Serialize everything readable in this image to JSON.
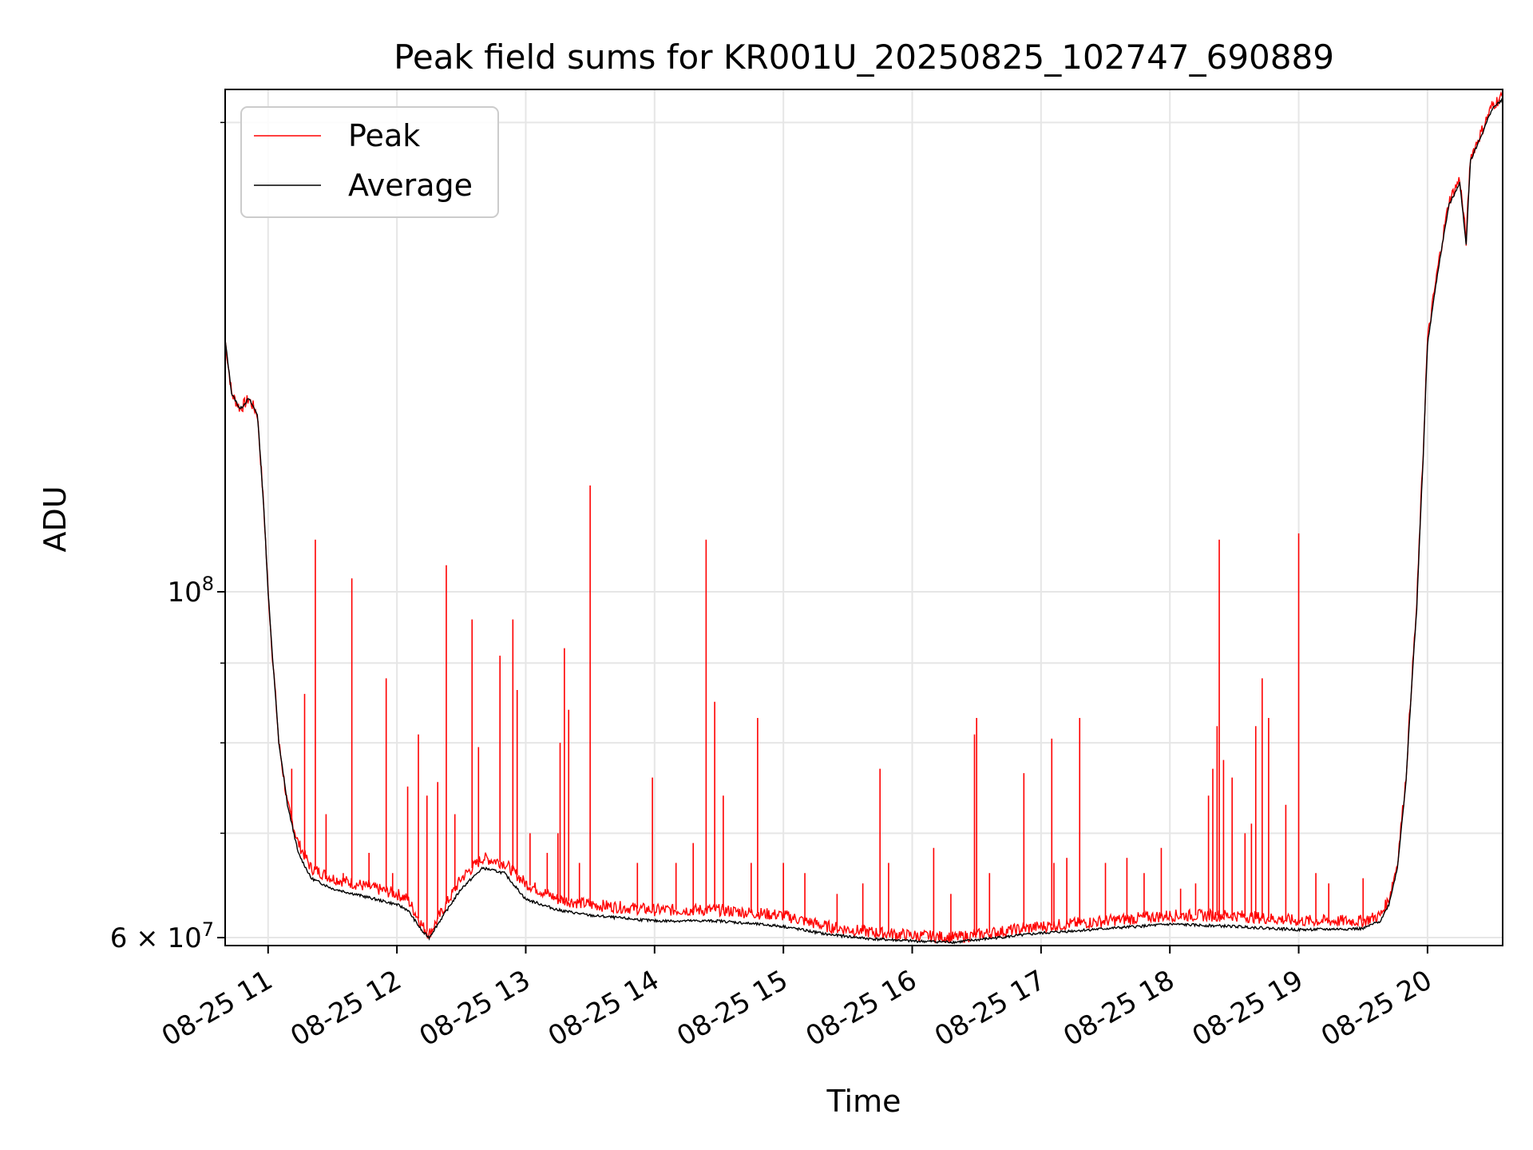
{
  "chart_data": {
    "type": "line",
    "title": "Peak field sums for KR001U_20250825_102747_690889",
    "xlabel": "Time",
    "ylabel": "ADU",
    "yscale": "log",
    "xlim": [
      "2025-08-25 10:40",
      "2025-08-25 20:35"
    ],
    "ylim": [
      59300000,
      210000000
    ],
    "grid": true,
    "legend": {
      "position": "top-left"
    },
    "x_ticks": [
      "08-25 11",
      "08-25 12",
      "08-25 13",
      "08-25 14",
      "08-25 15",
      "08-25 16",
      "08-25 17",
      "08-25 18",
      "08-25 19",
      "08-25 20"
    ],
    "y_ticks": [
      {
        "value": 100000000,
        "base": "10",
        "exp": "8"
      },
      {
        "value": 60000000,
        "text": "6 × 10",
        "exp": "7"
      }
    ],
    "colors": {
      "peak": "#ff0000",
      "average": "#000000",
      "grid": "#e6e6e6"
    },
    "series": [
      {
        "name": "Peak",
        "color": "#ff0000",
        "points": [
          [
            "10:40",
            145000000
          ],
          [
            "10:43",
            134000000
          ],
          [
            "10:47",
            131000000
          ],
          [
            "10:51",
            133000000
          ],
          [
            "10:55",
            130000000
          ],
          [
            "10:58",
            113000000
          ],
          [
            "11:00",
            100000000
          ],
          [
            "11:02",
            91000000
          ],
          [
            "11:05",
            80000000
          ],
          [
            "11:09",
            73000000
          ],
          [
            "11:14",
            69000000
          ],
          [
            "11:20",
            66500000
          ],
          [
            "11:30",
            65500000
          ],
          [
            "11:40",
            65000000
          ],
          [
            "11:50",
            64500000
          ],
          [
            "12:00",
            64000000
          ],
          [
            "12:05",
            63500000
          ],
          [
            "12:12",
            61000000
          ],
          [
            "12:15",
            60300000
          ],
          [
            "12:20",
            62000000
          ],
          [
            "12:30",
            65500000
          ],
          [
            "12:40",
            67500000
          ],
          [
            "12:50",
            67000000
          ],
          [
            "13:00",
            65000000
          ],
          [
            "13:15",
            63500000
          ],
          [
            "13:30",
            63000000
          ],
          [
            "14:00",
            62500000
          ],
          [
            "14:30",
            62500000
          ],
          [
            "15:00",
            62000000
          ],
          [
            "15:20",
            61000000
          ],
          [
            "15:40",
            60500000
          ],
          [
            "16:00",
            60200000
          ],
          [
            "16:20",
            60000000
          ],
          [
            "16:40",
            60500000
          ],
          [
            "17:00",
            61000000
          ],
          [
            "17:30",
            61500000
          ],
          [
            "18:00",
            62000000
          ],
          [
            "18:30",
            62000000
          ],
          [
            "19:00",
            61500000
          ],
          [
            "19:30",
            61500000
          ],
          [
            "19:38",
            62000000
          ],
          [
            "19:42",
            63500000
          ],
          [
            "19:46",
            67000000
          ],
          [
            "19:50",
            76000000
          ],
          [
            "19:55",
            98000000
          ],
          [
            "19:58",
            123000000
          ],
          [
            "20:00",
            145000000
          ],
          [
            "20:05",
            162000000
          ],
          [
            "20:10",
            178000000
          ],
          [
            "20:15",
            184000000
          ],
          [
            "20:18",
            168000000
          ],
          [
            "20:20",
            190000000
          ],
          [
            "20:25",
            197000000
          ],
          [
            "20:30",
            205000000
          ],
          [
            "20:35",
            208000000
          ]
        ],
        "spikes": [
          [
            "11:11",
            77000000
          ],
          [
            "11:17",
            86000000
          ],
          [
            "11:22",
            108000000
          ],
          [
            "11:27",
            72000000
          ],
          [
            "11:35",
            66000000
          ],
          [
            "11:39",
            102000000
          ],
          [
            "11:47",
            68000000
          ],
          [
            "11:55",
            88000000
          ],
          [
            "11:58",
            66000000
          ],
          [
            "12:05",
            75000000
          ],
          [
            "12:10",
            81000000
          ],
          [
            "12:14",
            74000000
          ],
          [
            "12:19",
            75500000
          ],
          [
            "12:23",
            104000000
          ],
          [
            "12:27",
            72000000
          ],
          [
            "12:35",
            96000000
          ],
          [
            "12:38",
            79500000
          ],
          [
            "12:48",
            91000000
          ],
          [
            "12:54",
            96000000
          ],
          [
            "12:56",
            86500000
          ],
          [
            "13:02",
            70000000
          ],
          [
            "13:10",
            68000000
          ],
          [
            "13:15",
            70000000
          ],
          [
            "13:16",
            80000000
          ],
          [
            "13:18",
            92000000
          ],
          [
            "13:20",
            84000000
          ],
          [
            "13:25",
            67000000
          ],
          [
            "13:30",
            117000000
          ],
          [
            "13:52",
            67000000
          ],
          [
            "13:59",
            76000000
          ],
          [
            "14:10",
            67000000
          ],
          [
            "14:18",
            69000000
          ],
          [
            "14:24",
            108000000
          ],
          [
            "14:28",
            85000000
          ],
          [
            "14:32",
            74000000
          ],
          [
            "14:45",
            67000000
          ],
          [
            "14:48",
            83000000
          ],
          [
            "15:00",
            67000000
          ],
          [
            "15:10",
            66000000
          ],
          [
            "15:25",
            64000000
          ],
          [
            "15:37",
            65000000
          ],
          [
            "15:45",
            77000000
          ],
          [
            "15:49",
            67000000
          ],
          [
            "16:10",
            68500000
          ],
          [
            "16:18",
            64000000
          ],
          [
            "16:29",
            81000000
          ],
          [
            "16:30",
            83000000
          ],
          [
            "16:36",
            66000000
          ],
          [
            "16:52",
            76500000
          ],
          [
            "17:05",
            80500000
          ],
          [
            "17:06",
            67000000
          ],
          [
            "17:12",
            67500000
          ],
          [
            "17:18",
            83000000
          ],
          [
            "17:30",
            67000000
          ],
          [
            "17:40",
            67500000
          ],
          [
            "17:48",
            66000000
          ],
          [
            "17:56",
            68500000
          ],
          [
            "18:05",
            64500000
          ],
          [
            "18:12",
            65000000
          ],
          [
            "18:18",
            74000000
          ],
          [
            "18:20",
            77000000
          ],
          [
            "18:22",
            82000000
          ],
          [
            "18:23",
            108000000
          ],
          [
            "18:25",
            78000000
          ],
          [
            "18:29",
            76000000
          ],
          [
            "18:35",
            70000000
          ],
          [
            "18:38",
            71000000
          ],
          [
            "18:40",
            82000000
          ],
          [
            "18:43",
            88000000
          ],
          [
            "18:46",
            83000000
          ],
          [
            "18:54",
            73000000
          ],
          [
            "19:00",
            109000000
          ],
          [
            "19:08",
            66000000
          ],
          [
            "19:14",
            65000000
          ],
          [
            "19:30",
            65500000
          ]
        ]
      },
      {
        "name": "Average",
        "color": "#000000",
        "points": [
          [
            "10:40",
            145000000
          ],
          [
            "10:43",
            134000000
          ],
          [
            "10:47",
            131000000
          ],
          [
            "10:51",
            133000000
          ],
          [
            "10:55",
            130000000
          ],
          [
            "10:58",
            113000000
          ],
          [
            "11:00",
            100000000
          ],
          [
            "11:02",
            91000000
          ],
          [
            "11:05",
            80000000
          ],
          [
            "11:09",
            73000000
          ],
          [
            "11:14",
            68000000
          ],
          [
            "11:20",
            65500000
          ],
          [
            "11:30",
            64500000
          ],
          [
            "11:40",
            64000000
          ],
          [
            "11:50",
            63500000
          ],
          [
            "12:00",
            63000000
          ],
          [
            "12:05",
            62500000
          ],
          [
            "12:12",
            60500000
          ],
          [
            "12:15",
            60000000
          ],
          [
            "12:20",
            61500000
          ],
          [
            "12:30",
            64500000
          ],
          [
            "12:40",
            66500000
          ],
          [
            "12:50",
            66000000
          ],
          [
            "13:00",
            63500000
          ],
          [
            "13:15",
            62500000
          ],
          [
            "13:30",
            62000000
          ],
          [
            "14:00",
            61500000
          ],
          [
            "14:30",
            61500000
          ],
          [
            "15:00",
            61000000
          ],
          [
            "15:20",
            60300000
          ],
          [
            "15:40",
            59900000
          ],
          [
            "16:00",
            59700000
          ],
          [
            "16:20",
            59600000
          ],
          [
            "16:40",
            60000000
          ],
          [
            "17:00",
            60400000
          ],
          [
            "17:30",
            60800000
          ],
          [
            "18:00",
            61200000
          ],
          [
            "18:30",
            61000000
          ],
          [
            "19:00",
            60700000
          ],
          [
            "19:30",
            60800000
          ],
          [
            "19:38",
            61500000
          ],
          [
            "19:42",
            63000000
          ],
          [
            "19:46",
            66500000
          ],
          [
            "19:50",
            75500000
          ],
          [
            "19:55",
            97500000
          ],
          [
            "19:58",
            122000000
          ],
          [
            "20:00",
            144000000
          ],
          [
            "20:05",
            161000000
          ],
          [
            "20:10",
            177000000
          ],
          [
            "20:15",
            183000000
          ],
          [
            "20:18",
            167000000
          ],
          [
            "20:20",
            189000000
          ],
          [
            "20:25",
            196000000
          ],
          [
            "20:30",
            204000000
          ],
          [
            "20:35",
            207000000
          ]
        ]
      }
    ]
  }
}
